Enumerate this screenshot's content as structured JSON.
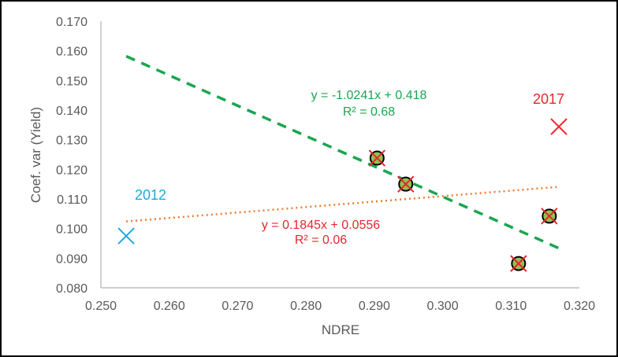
{
  "chart_data": {
    "type": "scatter",
    "title": "",
    "xlabel": "NDRE",
    "ylabel": "Coef. var (Yield)",
    "xlim": [
      0.25,
      0.32
    ],
    "ylim": [
      0.08,
      0.17
    ],
    "xticks": [
      "0.250",
      "0.260",
      "0.270",
      "0.280",
      "0.290",
      "0.300",
      "0.310",
      "0.320"
    ],
    "yticks": [
      "0.080",
      "0.090",
      "0.100",
      "0.110",
      "0.120",
      "0.130",
      "0.140",
      "0.150",
      "0.160",
      "0.170"
    ],
    "grid": false,
    "points": [
      {
        "x": 0.2904,
        "y": 0.1238
      },
      {
        "x": 0.2946,
        "y": 0.115
      },
      {
        "x": 0.3111,
        "y": 0.0882
      },
      {
        "x": 0.3156,
        "y": 0.1042
      }
    ],
    "outliers": [
      {
        "label": "2012",
        "x": 0.2537,
        "y": 0.0975,
        "color": "#1fa8e0"
      },
      {
        "label": "2017",
        "x": 0.317,
        "y": 0.1344,
        "color": "#e8262a"
      }
    ],
    "trendlines": [
      {
        "slope": -1.0241,
        "intercept": 0.418,
        "xrange": [
          0.2537,
          0.317
        ],
        "style": "dashed",
        "color": "#1aa650",
        "equation": "y = -1.0241x + 0.418",
        "r2": "R² = 0.68"
      },
      {
        "slope": 0.1845,
        "intercept": 0.0556,
        "xrange": [
          0.2537,
          0.317
        ],
        "style": "dotted",
        "color": "#ed7d31",
        "equation": "y = 0.1845x + 0.0556",
        "r2": "R² = 0.06",
        "label_color": "#e8262a"
      }
    ],
    "marker": {
      "fill": "#92c050",
      "stroke": "#000000",
      "cross": "#e8262a"
    }
  }
}
